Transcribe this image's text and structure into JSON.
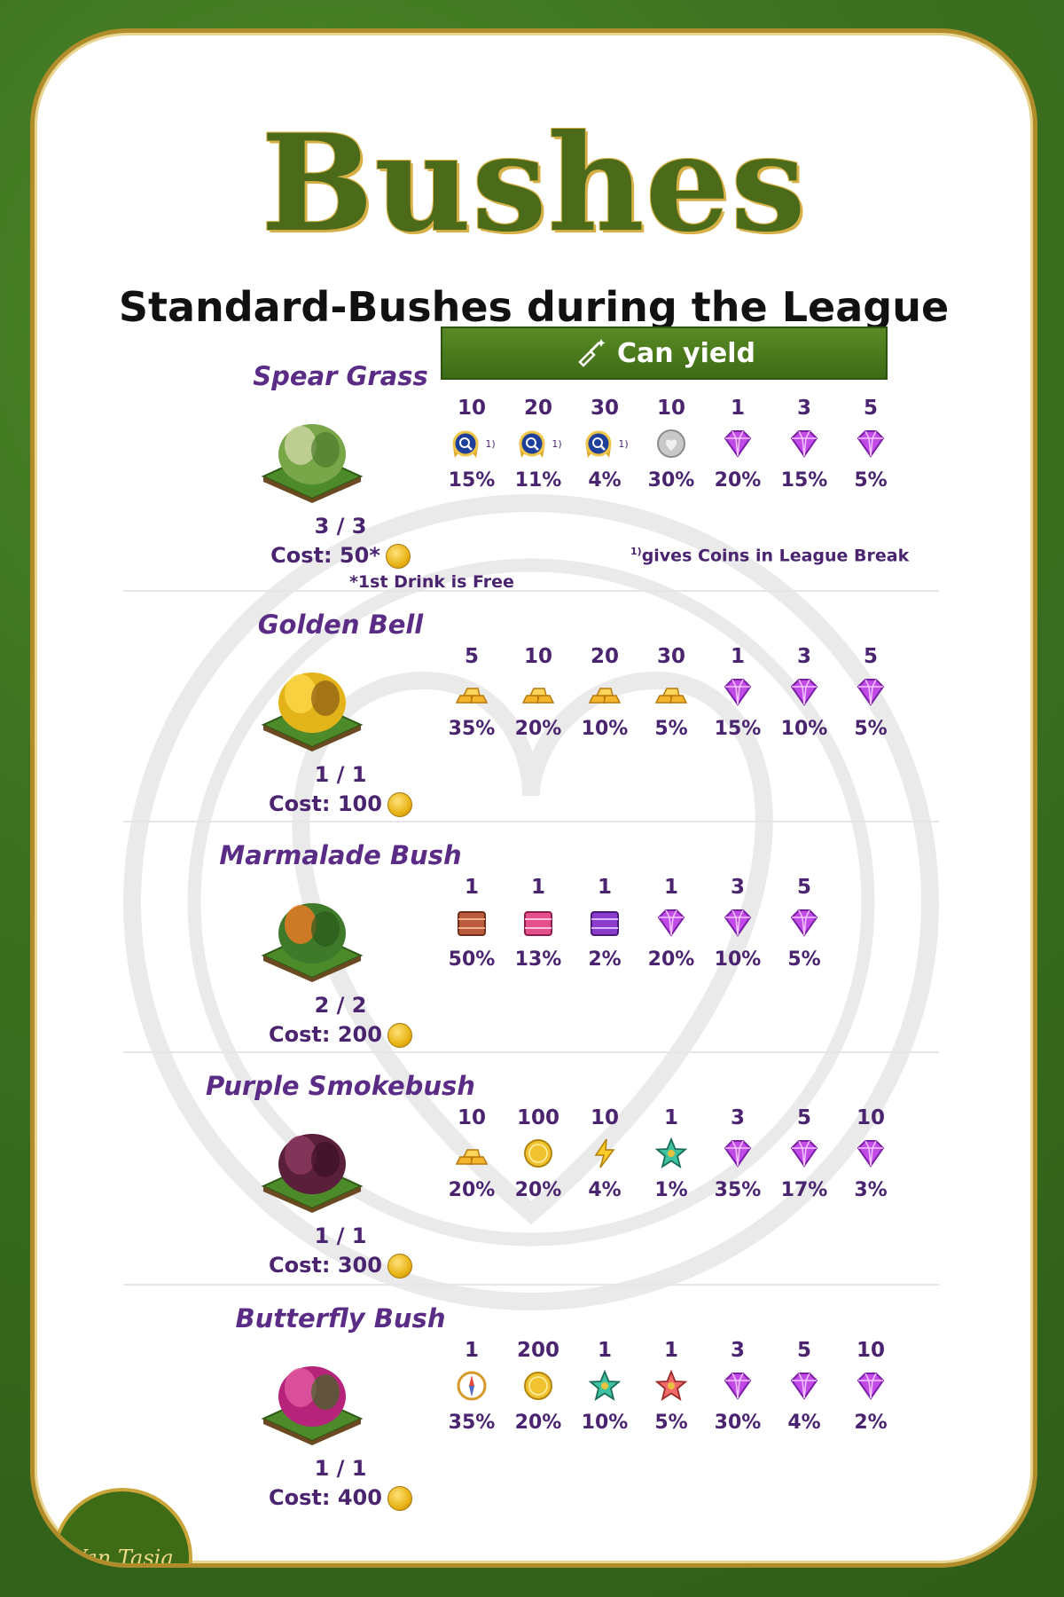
{
  "header": {
    "title": "Bushes",
    "subtitle": "Standard-Bushes during the League",
    "yield_label": "Can yield"
  },
  "colors": {
    "background_green": "#3c7120",
    "frame_gold": "#b08d2a",
    "title_green": "#4b6a1a",
    "text_purple": "#4b2470",
    "name_purple": "#5a2c86"
  },
  "bushes": [
    {
      "name": "Spear Grass",
      "count": "3 / 3",
      "cost": "Cost: 50*",
      "note": "*1st Drink is Free",
      "footnote": "gives Coins in League Break",
      "footnote_marker": "1)",
      "tile_icon": "spear-grass-bush",
      "drops": [
        {
          "amount": "10",
          "icon": "league-medal-icon",
          "mark": "1)",
          "chance": "15%"
        },
        {
          "amount": "20",
          "icon": "league-medal-icon",
          "mark": "1)",
          "chance": "11%"
        },
        {
          "amount": "30",
          "icon": "league-medal-icon",
          "mark": "1)",
          "chance": "4%"
        },
        {
          "amount": "10",
          "icon": "silver-coin-icon",
          "mark": "",
          "chance": "30%"
        },
        {
          "amount": "1",
          "icon": "diamond-icon",
          "mark": "",
          "chance": "20%"
        },
        {
          "amount": "3",
          "icon": "diamond-icon",
          "mark": "",
          "chance": "15%"
        },
        {
          "amount": "5",
          "icon": "diamond-icon",
          "mark": "",
          "chance": "5%"
        }
      ]
    },
    {
      "name": "Golden Bell",
      "count": "1 / 1",
      "cost": "Cost: 100",
      "tile_icon": "golden-bell-bush",
      "drops": [
        {
          "amount": "5",
          "icon": "gold-bars-icon",
          "chance": "35%"
        },
        {
          "amount": "10",
          "icon": "gold-bars-icon",
          "chance": "20%"
        },
        {
          "amount": "20",
          "icon": "gold-bars-icon",
          "chance": "10%"
        },
        {
          "amount": "30",
          "icon": "gold-bars-icon",
          "chance": "5%"
        },
        {
          "amount": "1",
          "icon": "diamond-icon",
          "chance": "15%"
        },
        {
          "amount": "3",
          "icon": "diamond-icon",
          "chance": "10%"
        },
        {
          "amount": "5",
          "icon": "diamond-icon",
          "chance": "5%"
        }
      ]
    },
    {
      "name": "Marmalade Bush",
      "count": "2 / 2",
      "cost": "Cost: 200",
      "tile_icon": "marmalade-bush",
      "drops": [
        {
          "amount": "1",
          "icon": "brown-crate-icon",
          "chance": "50%"
        },
        {
          "amount": "1",
          "icon": "pink-crate-icon",
          "chance": "13%"
        },
        {
          "amount": "1",
          "icon": "purple-crate-icon",
          "chance": "2%"
        },
        {
          "amount": "1",
          "icon": "diamond-icon",
          "chance": "20%"
        },
        {
          "amount": "3",
          "icon": "diamond-icon",
          "chance": "10%"
        },
        {
          "amount": "5",
          "icon": "diamond-icon",
          "chance": "5%"
        }
      ]
    },
    {
      "name": "Purple Smokebush",
      "count": "1 / 1",
      "cost": "Cost: 300",
      "tile_icon": "purple-smokebush",
      "drops": [
        {
          "amount": "10",
          "icon": "gold-bars-icon",
          "chance": "20%"
        },
        {
          "amount": "100",
          "icon": "gold-coin-icon",
          "chance": "20%"
        },
        {
          "amount": "10",
          "icon": "lightning-icon",
          "chance": "4%"
        },
        {
          "amount": "1",
          "icon": "green-star-icon",
          "chance": "1%"
        },
        {
          "amount": "3",
          "icon": "diamond-icon",
          "chance": "35%"
        },
        {
          "amount": "5",
          "icon": "diamond-icon",
          "chance": "17%"
        },
        {
          "amount": "10",
          "icon": "diamond-icon",
          "chance": "3%"
        }
      ]
    },
    {
      "name": "Butterfly Bush",
      "count": "1 / 1",
      "cost": "Cost: 400",
      "tile_icon": "butterfly-bush",
      "drops": [
        {
          "amount": "1",
          "icon": "compass-icon",
          "chance": "35%"
        },
        {
          "amount": "200",
          "icon": "gold-coin-icon",
          "chance": "20%"
        },
        {
          "amount": "1",
          "icon": "green-star-icon",
          "chance": "10%"
        },
        {
          "amount": "1",
          "icon": "red-star-icon",
          "chance": "5%"
        },
        {
          "amount": "3",
          "icon": "diamond-icon",
          "chance": "30%"
        },
        {
          "amount": "5",
          "icon": "diamond-icon",
          "chance": "4%"
        },
        {
          "amount": "10",
          "icon": "diamond-icon",
          "chance": "2%"
        }
      ]
    }
  ],
  "logo": {
    "text": "Van Tasia"
  }
}
